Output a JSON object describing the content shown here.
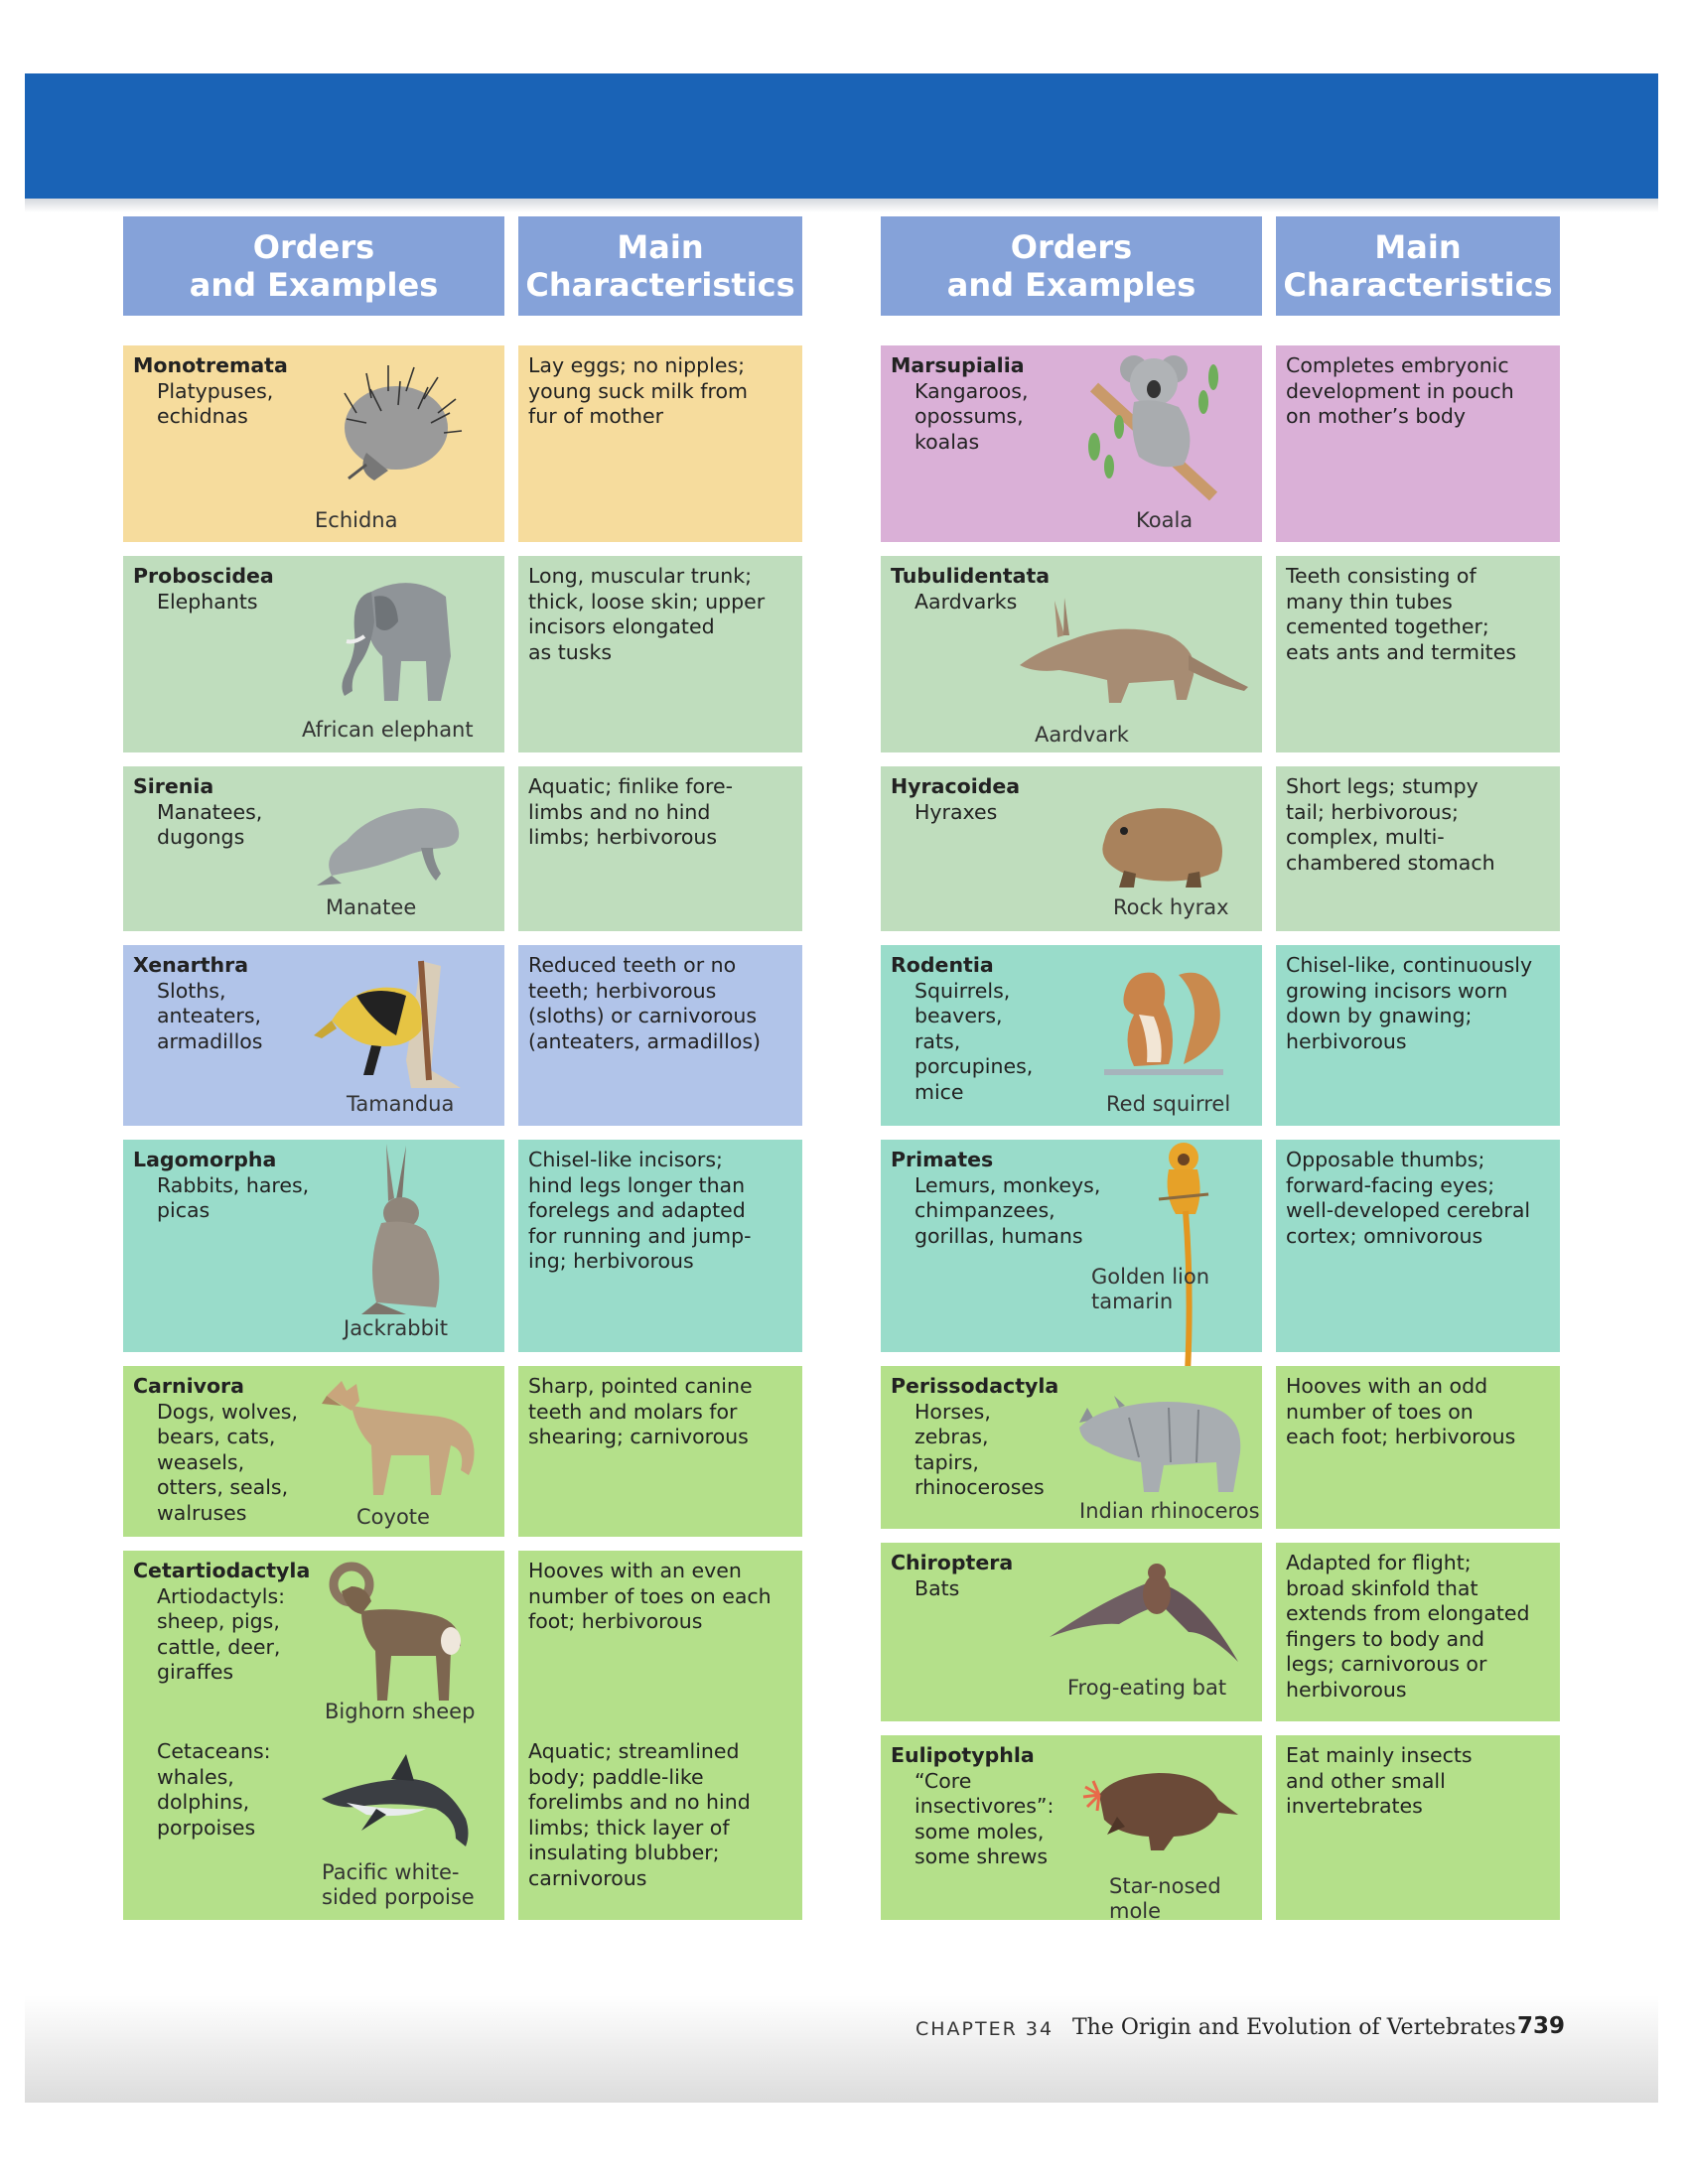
{
  "headers": {
    "orders": "Orders\nand Examples",
    "characteristics": "Main\nCharacteristics"
  },
  "left": [
    {
      "order": "Monotremata",
      "examples": "Platypuses,\nechidnas",
      "caption": "Echidna",
      "characteristics": "Lay eggs; no nipples;\nyoung suck milk from\nfur of mother",
      "color": "#f6dc9d",
      "icon": "echidna-illustration"
    },
    {
      "order": "Proboscidea",
      "examples": "Elephants",
      "caption": "African elephant",
      "characteristics": "Long, muscular trunk;\nthick, loose skin; upper\nincisors elongated\nas tusks",
      "color": "#bfddbd",
      "icon": "elephant-illustration"
    },
    {
      "order": "Sirenia",
      "examples": "Manatees,\ndugongs",
      "caption": "Manatee",
      "characteristics": "Aquatic; finlike fore-\nlimbs and no hind\nlimbs; herbivorous",
      "color": "#bfddbd",
      "icon": "manatee-illustration"
    },
    {
      "order": "Xenarthra",
      "examples": "Sloths,\nanteaters,\narmadillos",
      "caption": "Tamandua",
      "characteristics": "Reduced teeth or no\nteeth; herbivorous\n(sloths) or carnivorous\n(anteaters, armadillos)",
      "color": "#b1c4e9",
      "icon": "tamandua-illustration"
    },
    {
      "order": "Lagomorpha",
      "examples": "Rabbits, hares,\npicas",
      "caption": "Jackrabbit",
      "characteristics": "Chisel-like incisors;\nhind legs longer than\nforelegs and adapted\nfor running and jump-\ning; herbivorous",
      "color": "#99dcca",
      "icon": "jackrabbit-illustration"
    },
    {
      "order": "Carnivora",
      "examples": "Dogs, wolves,\nbears, cats,\nweasels,\notters, seals,\nwalruses",
      "caption": "Coyote",
      "characteristics": "Sharp, pointed canine\nteeth and molars for\nshearing; carnivorous",
      "color": "#b4e08a",
      "icon": "coyote-illustration"
    },
    {
      "order": "Cetartiodactyla",
      "examples": "Artiodactyls:\nsheep, pigs,\ncattle, deer,\ngiraffes",
      "caption": "Bighorn sheep",
      "characteristics": "Hooves with an even\nnumber of toes on each\nfoot; herbivorous",
      "examples2": "Cetaceans:\nwhales,\ndolphins,\nporpoises",
      "caption2": "Pacific white-\nsided porpoise",
      "characteristics2": "Aquatic; streamlined\nbody; paddle-like\nforelimbs and no hind\nlimbs; thick layer of\ninsulating blubber;\ncarnivorous",
      "color": "#b4e08a",
      "icon": "bighorn-sheep-illustration",
      "icon2": "porpoise-illustration"
    }
  ],
  "right": [
    {
      "order": "Marsupialia",
      "examples": "Kangaroos,\nopossums,\nkoalas",
      "caption": "Koala",
      "characteristics": "Completes embryonic\ndevelopment in pouch\non mother’s body",
      "color": "#dab0d7",
      "icon": "koala-illustration"
    },
    {
      "order": "Tubulidentata",
      "examples": "Aardvarks",
      "caption": "Aardvark",
      "characteristics": "Teeth consisting of\nmany thin tubes\ncemented together;\neats ants and termites",
      "color": "#bfddbd",
      "icon": "aardvark-illustration"
    },
    {
      "order": "Hyracoidea",
      "examples": "Hyraxes",
      "caption": "Rock hyrax",
      "characteristics": "Short legs; stumpy\ntail; herbivorous;\ncomplex, multi-\nchambered stomach",
      "color": "#bfddbd",
      "icon": "hyrax-illustration"
    },
    {
      "order": "Rodentia",
      "examples": "Squirrels,\nbeavers,\nrats,\nporcupines,\nmice",
      "caption": "Red squirrel",
      "characteristics": "Chisel-like, continuously\ngrowing incisors worn\ndown by gnawing;\nherbivorous",
      "color": "#99dcca",
      "icon": "squirrel-illustration"
    },
    {
      "order": "Primates",
      "examples": "Lemurs, monkeys,\nchimpanzees,\ngorillas, humans",
      "caption": "Golden lion\ntamarin",
      "characteristics": "Opposable thumbs;\nforward-facing eyes;\nwell-developed cerebral\ncortex; omnivorous",
      "color": "#99dcca",
      "icon": "tamarin-illustration"
    },
    {
      "order": "Perissodactyla",
      "examples": "Horses,\nzebras,\ntapirs,\nrhinoceroses",
      "caption": "Indian rhinoceros",
      "characteristics": "Hooves with an odd\nnumber of toes on\neach foot; herbivorous",
      "color": "#b4e08a",
      "icon": "rhinoceros-illustration"
    },
    {
      "order": "Chiroptera",
      "examples": "Bats",
      "caption": "Frog-eating bat",
      "characteristics": "Adapted for flight;\nbroad skinfold that\nextends from elongated\nfingers to body and\nlegs; carnivorous or\nherbivorous",
      "color": "#b4e08a",
      "icon": "bat-illustration"
    },
    {
      "order": "Eulipotyphla",
      "examples": "“Core\ninsectivores”:\nsome moles,\nsome shrews",
      "caption": "Star-nosed\nmole",
      "characteristics": "Eat mainly insects\nand other small\ninvertebrates",
      "color": "#b4e08a",
      "icon": "star-nosed-mole-illustration"
    }
  ],
  "footer": {
    "chapter": "CHAPTER 34",
    "title": "The Origin and Evolution of Vertebrates",
    "page": "739"
  }
}
